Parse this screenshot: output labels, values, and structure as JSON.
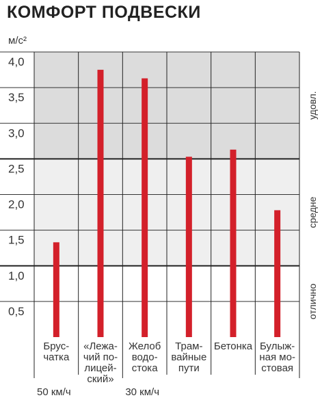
{
  "title": "КОМФОРТ ПОДВЕСКИ",
  "chart_data": {
    "type": "bar",
    "title": "КОМФОРТ ПОДВЕСКИ",
    "ylabel": "м/с²",
    "ylim": [
      0,
      4.0
    ],
    "yticks": [
      "4,0",
      "3,5",
      "3,0",
      "2,5",
      "2,0",
      "1,5",
      "1,0",
      "0,5"
    ],
    "ytick_values": [
      4.0,
      3.5,
      3.0,
      2.5,
      2.0,
      1.5,
      1.0,
      0.5
    ],
    "categories": [
      [
        "Брус-",
        "чатка"
      ],
      [
        "«Лежа-",
        "чий по-",
        "лицей-",
        "ский»"
      ],
      [
        "Желоб",
        "водо-",
        "стока"
      ],
      [
        "Трам-",
        "вайные",
        "пути"
      ],
      [
        "Бетонка"
      ],
      [
        "Булыж-",
        "ная мо-",
        "стовая"
      ]
    ],
    "values": [
      1.33,
      3.75,
      3.63,
      2.53,
      2.63,
      1.78
    ],
    "zones": [
      {
        "label": "удовл.",
        "from": 2.5,
        "to": 4.0,
        "color": "#dcdcdc"
      },
      {
        "label": "средне",
        "from": 1.0,
        "to": 2.5,
        "color": "#efefef"
      },
      {
        "label": "отлично",
        "from": 0.0,
        "to": 1.0,
        "color": "#ffffff"
      }
    ],
    "speed_groups": [
      {
        "label": "50 км/ч",
        "categories": [
          0,
          1
        ]
      },
      {
        "label": "30 км/ч",
        "categories": [
          2,
          3,
          4,
          5
        ]
      }
    ],
    "bar_color": "#d3202a",
    "grid": true
  }
}
